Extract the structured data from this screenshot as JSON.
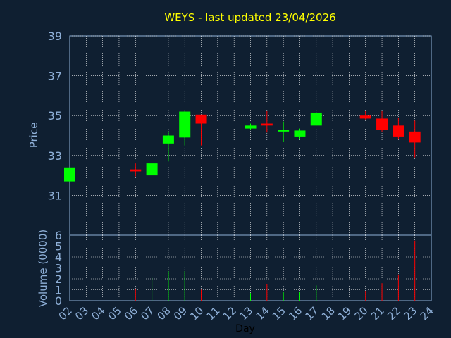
{
  "chart_data": {
    "type": "candlestick",
    "title": "WEYS - last updated 23/04/2026",
    "xlabel": "Day",
    "ylabel": "Price",
    "volume_label": "Volume (0000)",
    "x_ticks": [
      "02",
      "03",
      "04",
      "05",
      "06",
      "07",
      "08",
      "09",
      "10",
      "11",
      "12",
      "13",
      "14",
      "15",
      "16",
      "17",
      "18",
      "19",
      "20",
      "21",
      "22",
      "23",
      "24"
    ],
    "price_ticks": [
      "39",
      "37",
      "35",
      "33",
      "31"
    ],
    "volume_ticks": [
      "6",
      "5",
      "4",
      "3",
      "2",
      "1",
      "0"
    ],
    "price_ylim": [
      29,
      39
    ],
    "volume_ylim": [
      0,
      6
    ],
    "grid": true,
    "colors": {
      "up": "#00ff00",
      "down": "#ff0000",
      "title": "#ffff00",
      "axis": "#8fb0d8",
      "grid": "#ffffff",
      "background": "#0f1f31"
    },
    "candles": [
      {
        "day": "02",
        "open": 31.7,
        "high": 32.4,
        "low": 31.7,
        "close": 32.4,
        "volume": 0
      },
      {
        "day": "06",
        "open": 32.3,
        "high": 32.6,
        "low": 31.95,
        "close": 32.2,
        "volume": 1.1
      },
      {
        "day": "07",
        "open": 32.0,
        "high": 32.6,
        "low": 32.0,
        "close": 32.6,
        "volume": 2.1
      },
      {
        "day": "08",
        "open": 33.6,
        "high": 34.2,
        "low": 32.7,
        "close": 34.0,
        "volume": 2.7
      },
      {
        "day": "09",
        "open": 33.9,
        "high": 35.25,
        "low": 33.5,
        "close": 35.2,
        "volume": 2.7
      },
      {
        "day": "10",
        "open": 35.05,
        "high": 35.05,
        "low": 33.5,
        "close": 34.6,
        "volume": 1.0
      },
      {
        "day": "13",
        "open": 34.35,
        "high": 34.6,
        "low": 34.3,
        "close": 34.5,
        "volume": 0.7
      },
      {
        "day": "14",
        "open": 34.6,
        "high": 35.25,
        "low": 34.15,
        "close": 34.5,
        "volume": 1.5
      },
      {
        "day": "15",
        "open": 34.2,
        "high": 34.7,
        "low": 33.7,
        "close": 34.3,
        "volume": 0.8
      },
      {
        "day": "16",
        "open": 33.95,
        "high": 34.35,
        "low": 33.8,
        "close": 34.25,
        "volume": 0.8
      },
      {
        "day": "17",
        "open": 34.5,
        "high": 35.15,
        "low": 34.5,
        "close": 35.15,
        "volume": 1.4
      },
      {
        "day": "20",
        "open": 35.0,
        "high": 35.25,
        "low": 34.8,
        "close": 34.85,
        "volume": 0.9
      },
      {
        "day": "21",
        "open": 34.85,
        "high": 35.25,
        "low": 34.2,
        "close": 34.3,
        "volume": 1.6
      },
      {
        "day": "22",
        "open": 34.5,
        "high": 34.9,
        "low": 33.8,
        "close": 33.95,
        "volume": 2.4
      },
      {
        "day": "23",
        "open": 34.2,
        "high": 34.75,
        "low": 32.9,
        "close": 33.65,
        "volume": 5.5
      }
    ]
  }
}
